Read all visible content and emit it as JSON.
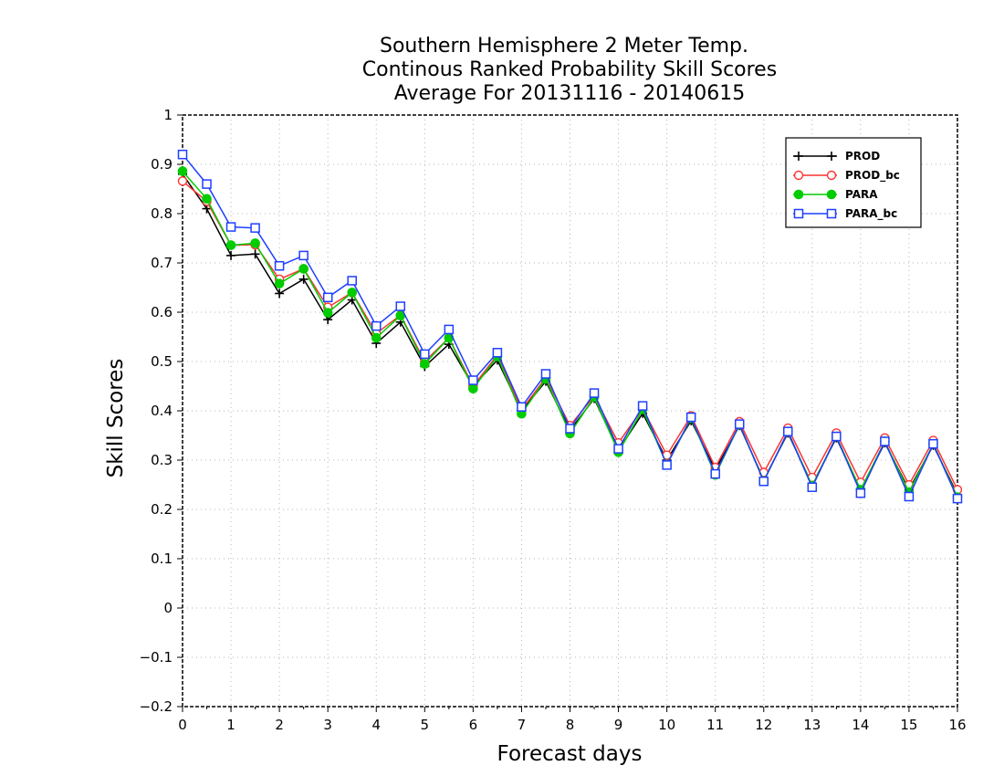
{
  "chart_data": {
    "type": "line",
    "title": [
      "Southern Hemisphere 2 Meter Temp.",
      "Continous Ranked Probability Skill Scores",
      "Average For 20131116 - 20140615"
    ],
    "xlabel": "Forecast days",
    "ylabel": "Skill Scores",
    "xlim": [
      0,
      16
    ],
    "ylim": [
      -0.2,
      1
    ],
    "xticks": [
      0,
      1,
      2,
      3,
      4,
      5,
      6,
      7,
      8,
      9,
      10,
      11,
      12,
      13,
      14,
      15,
      16
    ],
    "yticks": [
      -0.2,
      -0.1,
      0,
      0.1,
      0.2,
      0.3,
      0.4,
      0.5,
      0.6,
      0.7,
      0.8,
      0.9,
      1
    ],
    "ytick_labels": [
      "−0.2",
      "−0.1",
      "0",
      "0.1",
      "0.2",
      "0.3",
      "0.4",
      "0.5",
      "0.6",
      "0.7",
      "0.8",
      "0.9",
      "1"
    ],
    "grid": true,
    "legend_position": "top-right",
    "x": [
      0,
      0.5,
      1,
      1.5,
      2,
      2.5,
      3,
      3.5,
      4,
      4.5,
      5,
      5.5,
      6,
      6.5,
      7,
      7.5,
      8,
      8.5,
      9,
      9.5,
      10,
      10.5,
      11,
      11.5,
      12,
      12.5,
      13,
      13.5,
      14,
      14.5,
      15,
      15.5,
      16
    ],
    "series": [
      {
        "name": "PROD",
        "color": "#000000",
        "marker": "plus",
        "values": [
          0.88,
          0.81,
          0.715,
          0.718,
          0.638,
          0.667,
          0.585,
          0.625,
          0.537,
          0.58,
          0.49,
          0.535,
          0.45,
          0.503,
          0.4,
          0.46,
          0.36,
          0.425,
          0.32,
          0.395,
          0.3,
          0.38,
          0.28,
          0.37,
          0.26,
          0.355,
          0.25,
          0.345,
          0.24,
          0.335,
          0.24,
          0.33,
          0.23
        ]
      },
      {
        "name": "PROD_bc",
        "color": "#ff3333",
        "marker": "circle-open",
        "values": [
          0.866,
          0.825,
          0.736,
          0.737,
          0.667,
          0.688,
          0.61,
          0.64,
          0.557,
          0.594,
          0.5,
          0.548,
          0.45,
          0.513,
          0.402,
          0.467,
          0.37,
          0.43,
          0.335,
          0.405,
          0.31,
          0.39,
          0.285,
          0.378,
          0.275,
          0.365,
          0.265,
          0.355,
          0.255,
          0.345,
          0.25,
          0.34,
          0.24
        ]
      },
      {
        "name": "PARA",
        "color": "#00cc00",
        "marker": "circle-filled",
        "values": [
          0.886,
          0.83,
          0.736,
          0.74,
          0.658,
          0.688,
          0.599,
          0.64,
          0.548,
          0.593,
          0.495,
          0.548,
          0.445,
          0.51,
          0.394,
          0.465,
          0.354,
          0.428,
          0.316,
          0.403,
          0.291,
          0.385,
          0.27,
          0.372,
          0.258,
          0.358,
          0.248,
          0.348,
          0.24,
          0.338,
          0.235,
          0.333,
          0.225
        ]
      },
      {
        "name": "PARA_bc",
        "color": "#1f3fff",
        "marker": "square-open",
        "values": [
          0.92,
          0.86,
          0.773,
          0.771,
          0.694,
          0.715,
          0.63,
          0.664,
          0.572,
          0.612,
          0.515,
          0.565,
          0.462,
          0.518,
          0.408,
          0.475,
          0.364,
          0.436,
          0.323,
          0.41,
          0.29,
          0.387,
          0.272,
          0.373,
          0.257,
          0.358,
          0.245,
          0.348,
          0.233,
          0.338,
          0.226,
          0.333,
          0.222
        ]
      }
    ]
  }
}
